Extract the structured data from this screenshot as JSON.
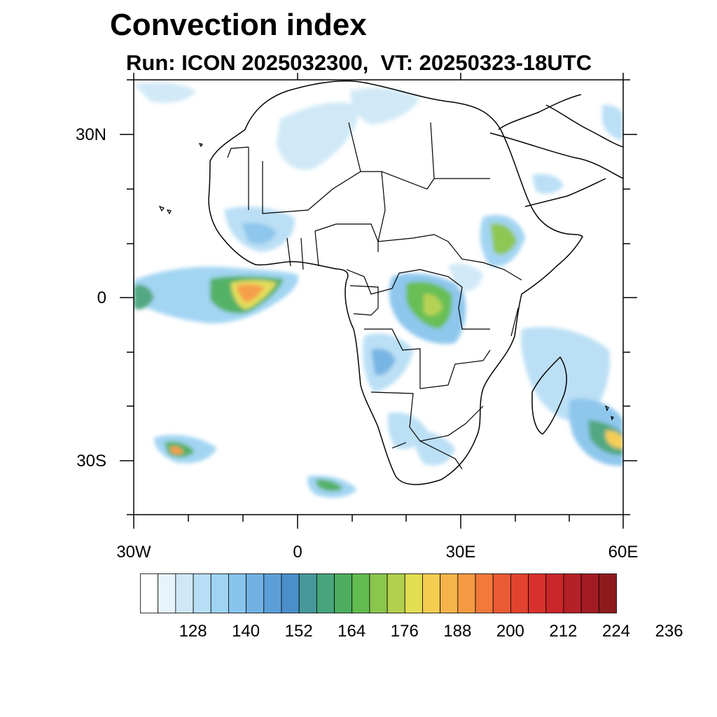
{
  "title": "Convection index",
  "subtitle": "Run: ICON 2025032300,  VT: 20250323-18UTC",
  "axes": {
    "lat_labels": [
      "30N",
      "0",
      "30S"
    ],
    "lon_labels": [
      "30W",
      "0",
      "30E",
      "60E"
    ],
    "lon_range": [
      -30,
      60
    ],
    "lat_range": [
      -40,
      40
    ]
  },
  "colorbar": {
    "tick_labels": [
      "128",
      "140",
      "152",
      "164",
      "176",
      "188",
      "200",
      "212",
      "224",
      "236"
    ],
    "colors": [
      "#ffffff",
      "#e8f4fc",
      "#cfe8f7",
      "#b8def5",
      "#9ed3f2",
      "#88c4ec",
      "#72b2e3",
      "#5c9fd8",
      "#4a8fc9",
      "#46989a",
      "#48a47c",
      "#4cae5e",
      "#62bb4e",
      "#8ac54c",
      "#b2d04e",
      "#e3dd52",
      "#f4cc50",
      "#f5b44a",
      "#f59a42",
      "#f1793a",
      "#ea5a33",
      "#e2432f",
      "#d8302c",
      "#c9272a",
      "#b52026",
      "#a31b22",
      "#8e1a1e"
    ]
  }
}
